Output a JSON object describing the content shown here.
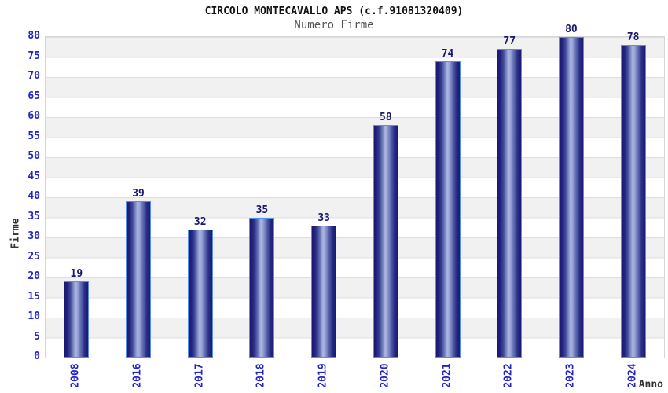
{
  "chart_data": {
    "type": "bar",
    "title": "CIRCOLO MONTECAVALLO APS (c.f.91081320409)",
    "subtitle": "Numero Firme",
    "xlabel": "Anno",
    "ylabel": "Firme",
    "categories": [
      "2008",
      "2016",
      "2017",
      "2018",
      "2019",
      "2020",
      "2021",
      "2022",
      "2023",
      "2024"
    ],
    "values": [
      19,
      39,
      32,
      35,
      33,
      58,
      74,
      77,
      80,
      78
    ],
    "ylim": [
      0,
      80
    ],
    "ytick_step": 5,
    "grid": true,
    "legend": "none",
    "colors": {
      "bar_dark": "#191970",
      "bar_highlight": "#aeb8e2",
      "bar_border": "#5a8de8",
      "tick_label": "#2424cc",
      "value_label": "#191970",
      "band_gray": "#f1f1f1",
      "gridline": "#dedede",
      "title_color": "#111111",
      "subtitle_color": "#555555",
      "axis_title_color": "#333333"
    }
  }
}
